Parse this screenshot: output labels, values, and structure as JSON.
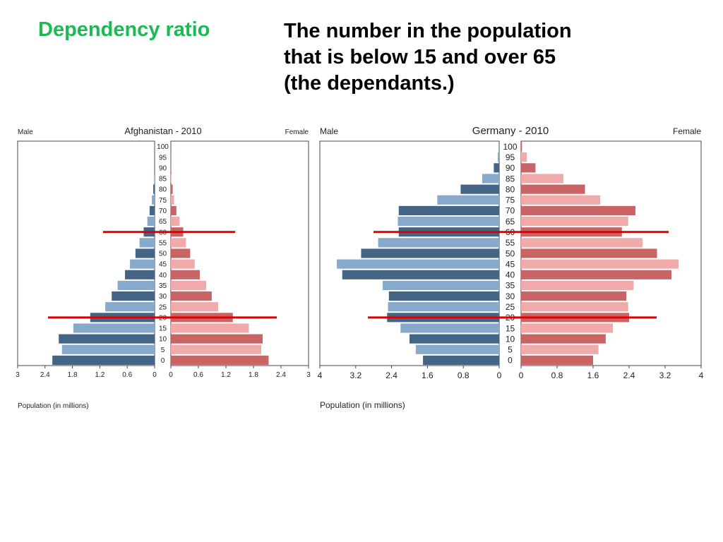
{
  "heading": "Dependency ratio",
  "definition": {
    "lines": [
      "The number in the population",
      "that is below 15 and over 65",
      "(the dependants.)"
    ]
  },
  "colors": {
    "male_dark": "#456587",
    "male_light": "#87a9cc",
    "female_dark": "#c96464",
    "female_light": "#f0aaaa",
    "marker_line": "#dd0000",
    "heading": "#1db954"
  },
  "chart_data": [
    {
      "type": "bar",
      "orientation": "horizontal-population-pyramid",
      "title": "Afghanistan - 2010",
      "left_label": "Male",
      "right_label": "Female",
      "xlabel": "Population (in millions)",
      "xlim": [
        0,
        3
      ],
      "x_ticks": [
        "3",
        "2.4",
        "1.8",
        "1.2",
        "0.6",
        "0",
        "0",
        "0.6",
        "1.2",
        "1.8",
        "2.4",
        "3"
      ],
      "age_groups": [
        "0",
        "5",
        "10",
        "15",
        "20",
        "25",
        "30",
        "35",
        "40",
        "45",
        "50",
        "55",
        "60",
        "65",
        "70",
        "75",
        "80",
        "85",
        "90",
        "95",
        "100"
      ],
      "series": [
        {
          "name": "Male",
          "values": [
            2.24,
            2.03,
            2.1,
            1.78,
            1.41,
            1.08,
            0.94,
            0.81,
            0.65,
            0.54,
            0.42,
            0.33,
            0.24,
            0.16,
            0.11,
            0.06,
            0.03,
            0.01,
            0.005,
            0.002,
            0.001
          ]
        },
        {
          "name": "Female",
          "values": [
            2.13,
            1.97,
            2.0,
            1.7,
            1.35,
            1.03,
            0.89,
            0.77,
            0.63,
            0.52,
            0.42,
            0.33,
            0.27,
            0.19,
            0.12,
            0.07,
            0.04,
            0.01,
            0.005,
            0.002,
            0.001
          ]
        }
      ],
      "reference_ages": [
        20,
        60
      ]
    },
    {
      "type": "bar",
      "orientation": "horizontal-population-pyramid",
      "title": "Germany - 2010",
      "left_label": "Male",
      "right_label": "Female",
      "xlabel": "Population (in millions)",
      "xlim": [
        0,
        4
      ],
      "x_ticks": [
        "4",
        "3.2",
        "2.4",
        "1.6",
        "0.8",
        "0",
        "0",
        "0.8",
        "1.6",
        "2.4",
        "3.2",
        "4"
      ],
      "age_groups": [
        "0",
        "5",
        "10",
        "15",
        "20",
        "25",
        "30",
        "35",
        "40",
        "45",
        "50",
        "55",
        "60",
        "65",
        "70",
        "75",
        "80",
        "85",
        "90",
        "95",
        "100"
      ],
      "series": [
        {
          "name": "Male",
          "values": [
            1.7,
            1.86,
            2.0,
            2.2,
            2.5,
            2.48,
            2.46,
            2.6,
            3.5,
            3.62,
            3.08,
            2.7,
            2.24,
            2.26,
            2.24,
            1.38,
            0.86,
            0.38,
            0.12,
            0.03,
            0.005
          ]
        },
        {
          "name": "Female",
          "values": [
            1.6,
            1.72,
            1.88,
            2.04,
            2.4,
            2.38,
            2.34,
            2.5,
            3.34,
            3.5,
            3.02,
            2.7,
            2.24,
            2.38,
            2.54,
            1.76,
            1.42,
            0.94,
            0.32,
            0.13,
            0.02
          ]
        }
      ],
      "reference_ages": [
        20,
        60
      ]
    }
  ]
}
